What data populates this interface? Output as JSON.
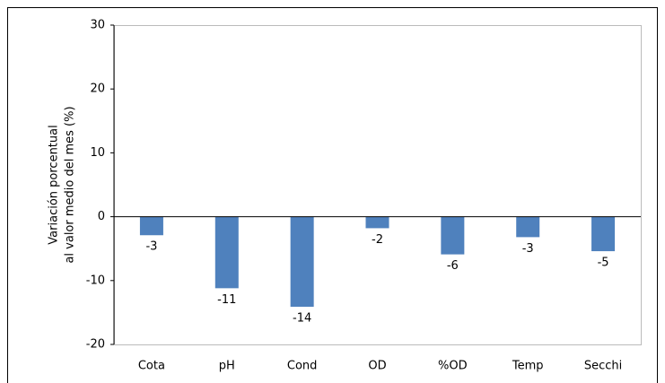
{
  "chart_data": {
    "type": "bar",
    "ylabel": [
      "Variación porcentual",
      "al valor medio del mes (%)"
    ],
    "categories": [
      "Cota",
      "pH",
      "Cond",
      "OD",
      "%OD",
      "Temp",
      "Secchi"
    ],
    "values": [
      -2.9,
      -11.2,
      -14.1,
      -1.8,
      -5.9,
      -3.2,
      -5.4
    ],
    "value_labels": [
      "-3",
      "-11",
      "-14",
      "-2",
      "-6",
      "-3",
      "-5"
    ],
    "color": "#4f81bd",
    "ylim": [
      -20,
      30
    ],
    "yticks": [
      -20,
      -10,
      0,
      10,
      20,
      30
    ],
    "grid": false
  }
}
